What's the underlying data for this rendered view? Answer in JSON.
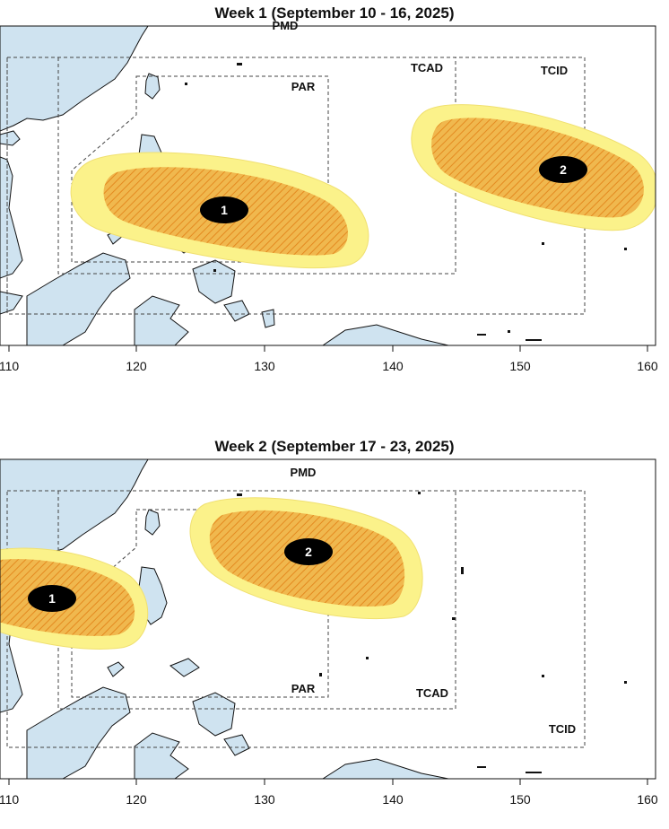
{
  "colors": {
    "land": "#cfe3f0",
    "land_outline": "#111111",
    "outer_zone": "#fbf28a",
    "inner_zone": "#f0b84e",
    "hatch": "#e0902e",
    "marker": "#000000",
    "boundary": "#444444"
  },
  "longitude_ticks": [
    "110",
    "120",
    "130",
    "140",
    "150",
    "160"
  ],
  "panels": [
    {
      "title": "Week 1 (September 10 - 16, 2025)",
      "boundary_labels": {
        "pmd": "PMD",
        "par": "PAR",
        "tcad": "TCAD",
        "tcid": "TCID"
      },
      "zones": [
        {
          "label": "1",
          "center_lon": 127,
          "center_lat": 12.7
        },
        {
          "label": "2",
          "center_lon": 153,
          "center_lat": 16.5
        }
      ]
    },
    {
      "title": "Week 2 (September 17 - 23, 2025)",
      "boundary_labels": {
        "pmd": "PMD",
        "par": "PAR",
        "tcad": "TCAD",
        "tcid": "TCID"
      },
      "zones": [
        {
          "label": "1",
          "center_lon": 113,
          "center_lat": 17.5
        },
        {
          "label": "2",
          "center_lon": 133,
          "center_lat": 23.5
        }
      ]
    }
  ]
}
